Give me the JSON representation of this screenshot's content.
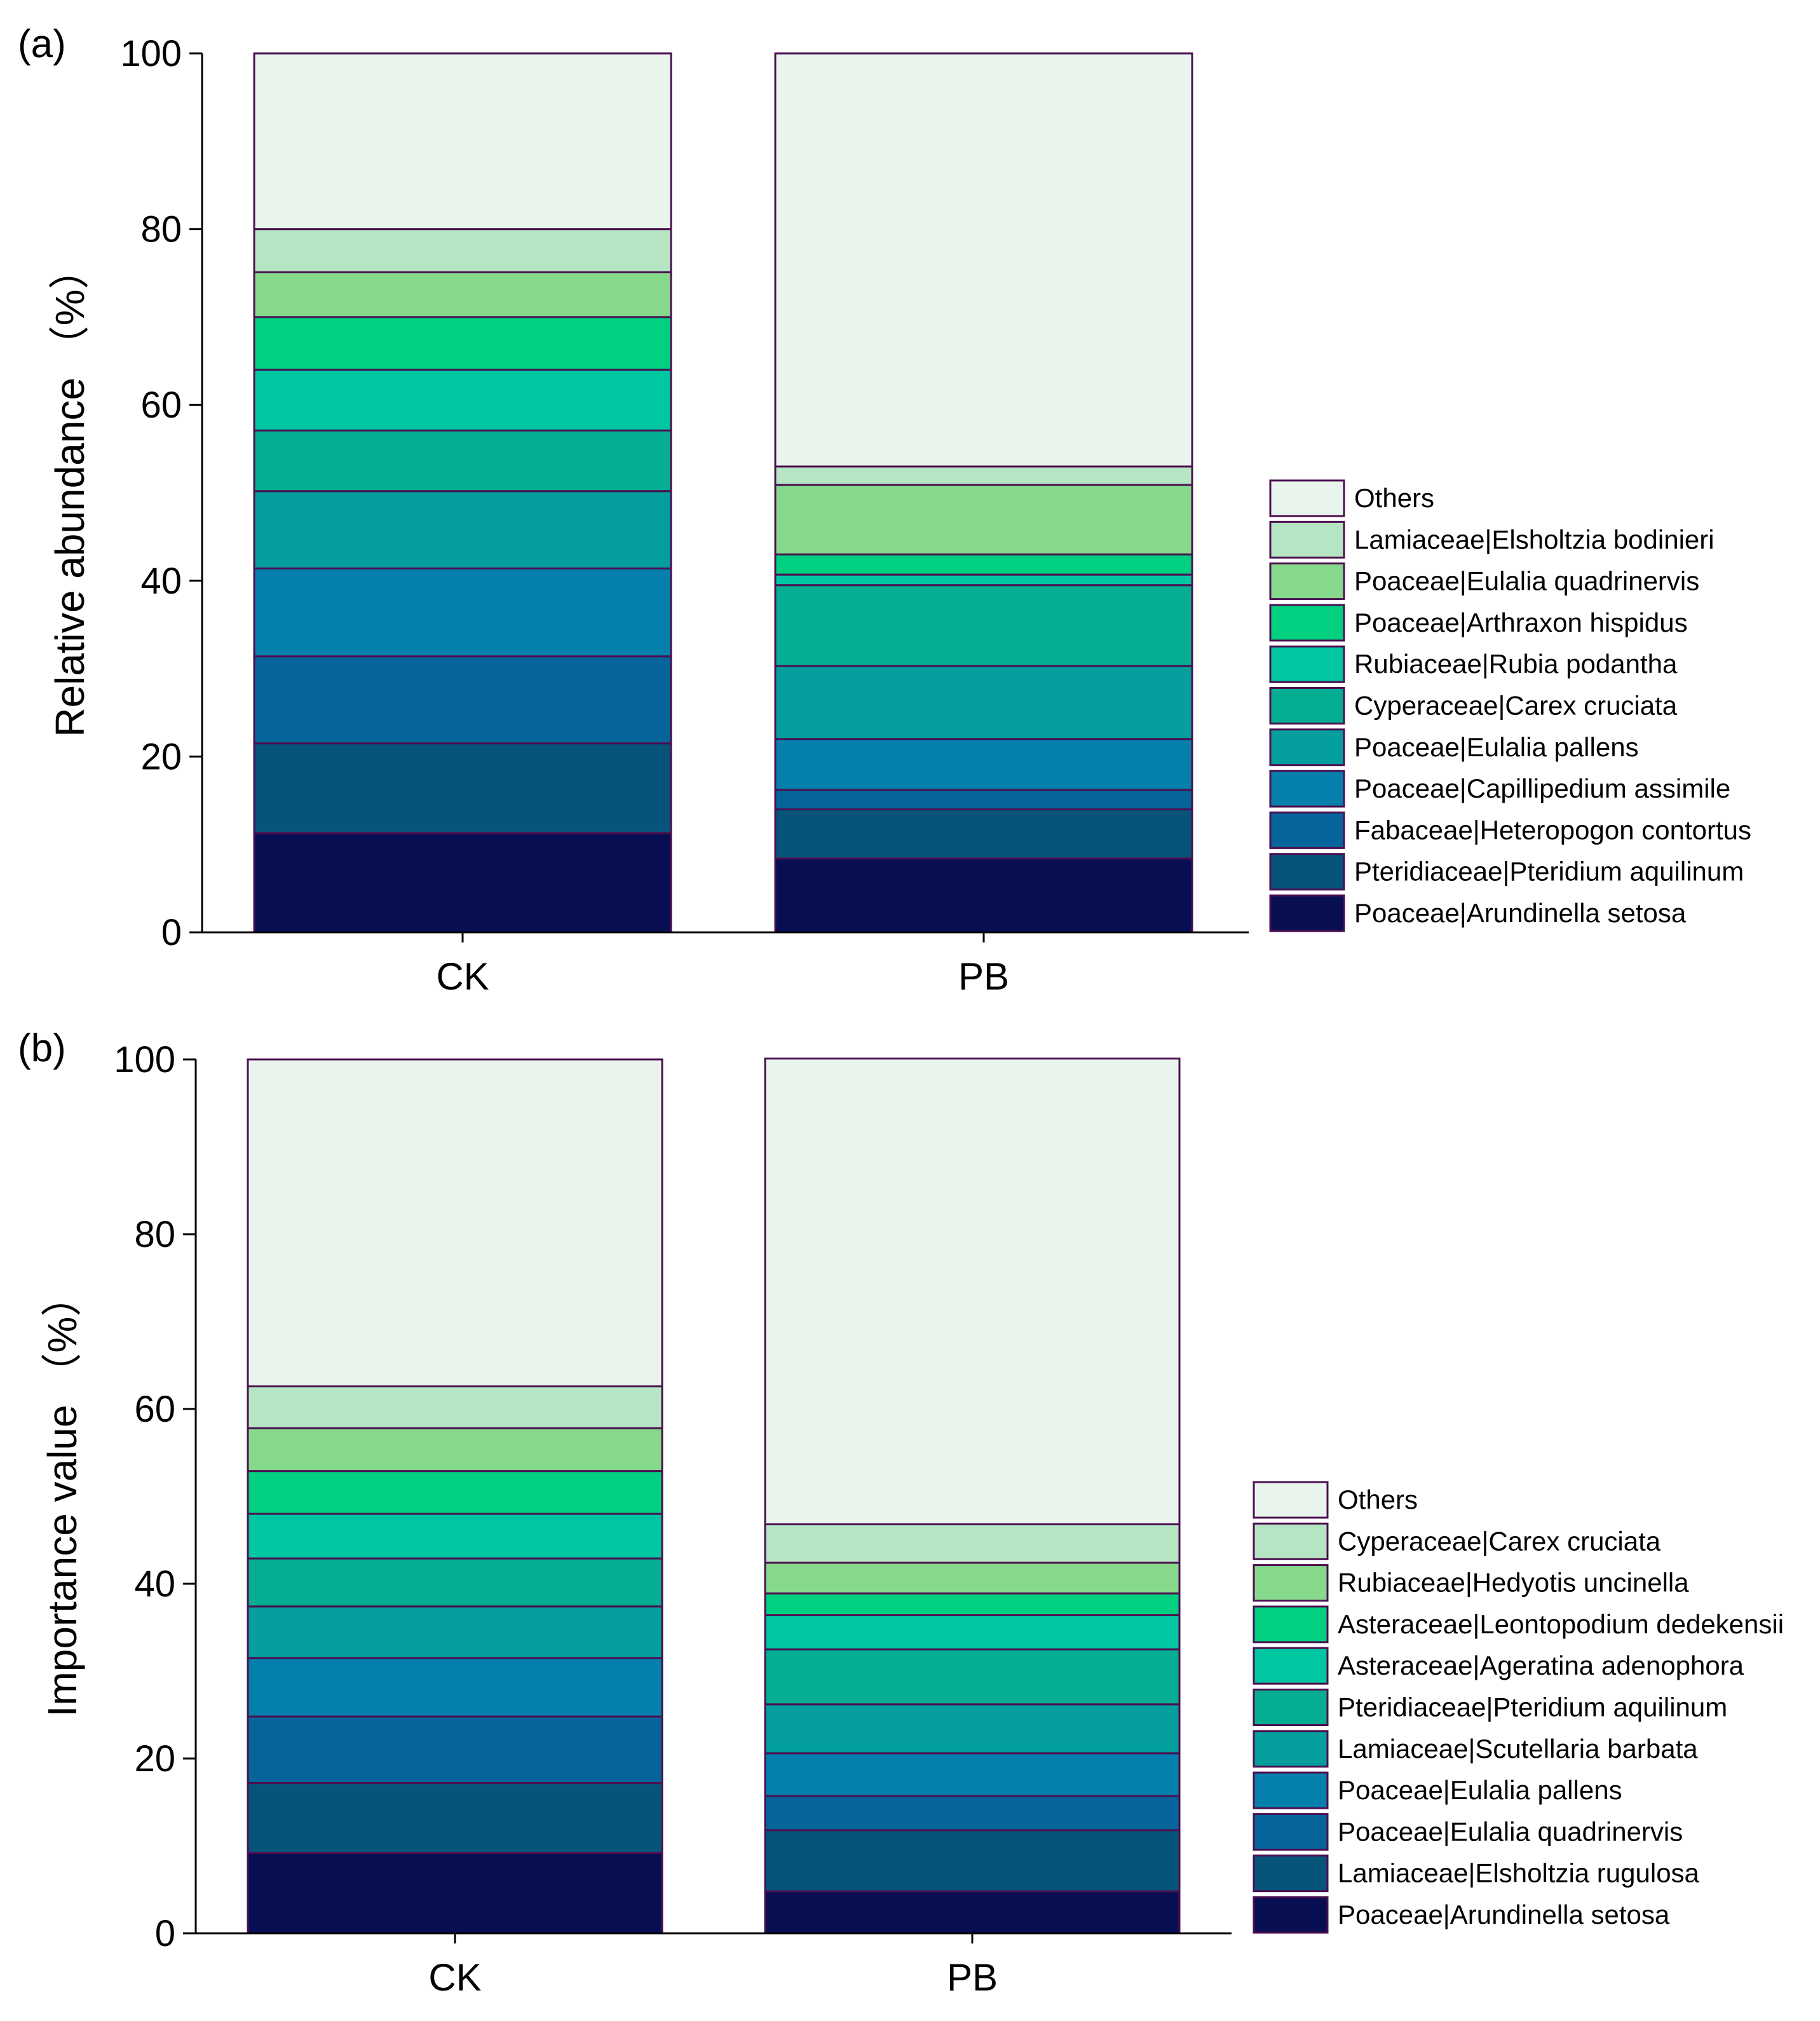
{
  "palette": [
    "#070f52",
    "#06547a",
    "#05649a",
    "#0580ad",
    "#049f9c",
    "#05ae92",
    "#00c6a2",
    "#00d080",
    "#86d98a",
    "#b5e5c3",
    "#e9f5ec"
  ],
  "stroke_color": "#4b0f50",
  "chart_data": [
    {
      "type": "bar",
      "stacked": true,
      "panel_label": "(a)",
      "ylabel": "Relative abundance （%）",
      "ylim": [
        0,
        100
      ],
      "yticks": [
        "0",
        "20",
        "40",
        "60",
        "80",
        "100"
      ],
      "grid": false,
      "legend_position": "right",
      "categories": [
        "CK",
        "PB"
      ],
      "series": [
        {
          "name": "Poaceae|Arundinella setosa",
          "values": [
            11.3,
            8.4
          ]
        },
        {
          "name": "Pteridiaceae|Pteridium aquilinum",
          "values": [
            10.2,
            5.6
          ]
        },
        {
          "name": "Fabaceae|Heteropogon contortus",
          "values": [
            9.9,
            2.2
          ]
        },
        {
          "name": "Poaceae|Capillipedium assimile",
          "values": [
            10.0,
            5.8
          ]
        },
        {
          "name": "Poaceae|Eulalia pallens",
          "values": [
            8.8,
            8.3
          ]
        },
        {
          "name": "Cyperaceae|Carex cruciata",
          "values": [
            6.9,
            9.2
          ]
        },
        {
          "name": "Rubiaceae|Rubia podantha",
          "values": [
            6.9,
            1.2
          ]
        },
        {
          "name": "Poaceae|Arthraxon hispidus",
          "values": [
            6.0,
            2.3
          ]
        },
        {
          "name": "Poaceae|Eulalia quadrinervis",
          "values": [
            5.1,
            7.9
          ]
        },
        {
          "name": "Lamiaceae|Elsholtzia bodinieri",
          "values": [
            4.9,
            2.1
          ]
        },
        {
          "name": "Others",
          "values": [
            20.0,
            47.0
          ]
        }
      ]
    },
    {
      "type": "bar",
      "stacked": true,
      "panel_label": "(b)",
      "ylabel": "Importance value （%）",
      "ylim": [
        0,
        100
      ],
      "yticks": [
        "0",
        "20",
        "40",
        "60",
        "80",
        "100"
      ],
      "grid": false,
      "legend_position": "right",
      "categories": [
        "CK",
        "PB"
      ],
      "series": [
        {
          "name": "Poaceae|Arundinella setosa",
          "values": [
            9.2,
            4.8
          ]
        },
        {
          "name": "Lamiaceae|Elsholtzia rugulosa",
          "values": [
            8.0,
            7.0
          ]
        },
        {
          "name": "Poaceae|Eulalia quadrinervis",
          "values": [
            7.6,
            3.9
          ]
        },
        {
          "name": "Poaceae|Eulalia pallens",
          "values": [
            6.7,
            4.9
          ]
        },
        {
          "name": "Lamiaceae|Scutellaria barbata",
          "values": [
            5.9,
            5.6
          ]
        },
        {
          "name": "Pteridiaceae|Pteridium aquilinum",
          "values": [
            5.5,
            6.3
          ]
        },
        {
          "name": "Asteraceae|Ageratina adenophora",
          "values": [
            5.1,
            3.9
          ]
        },
        {
          "name": "Asteraceae|Leontopodium dedekensii",
          "values": [
            4.9,
            2.5
          ]
        },
        {
          "name": "Rubiaceae|Hedyotis uncinella",
          "values": [
            4.9,
            3.5
          ]
        },
        {
          "name": "Cyperaceae|Carex cruciata",
          "values": [
            4.8,
            4.4
          ]
        },
        {
          "name": "Others",
          "values": [
            37.4,
            53.3
          ]
        }
      ]
    }
  ]
}
